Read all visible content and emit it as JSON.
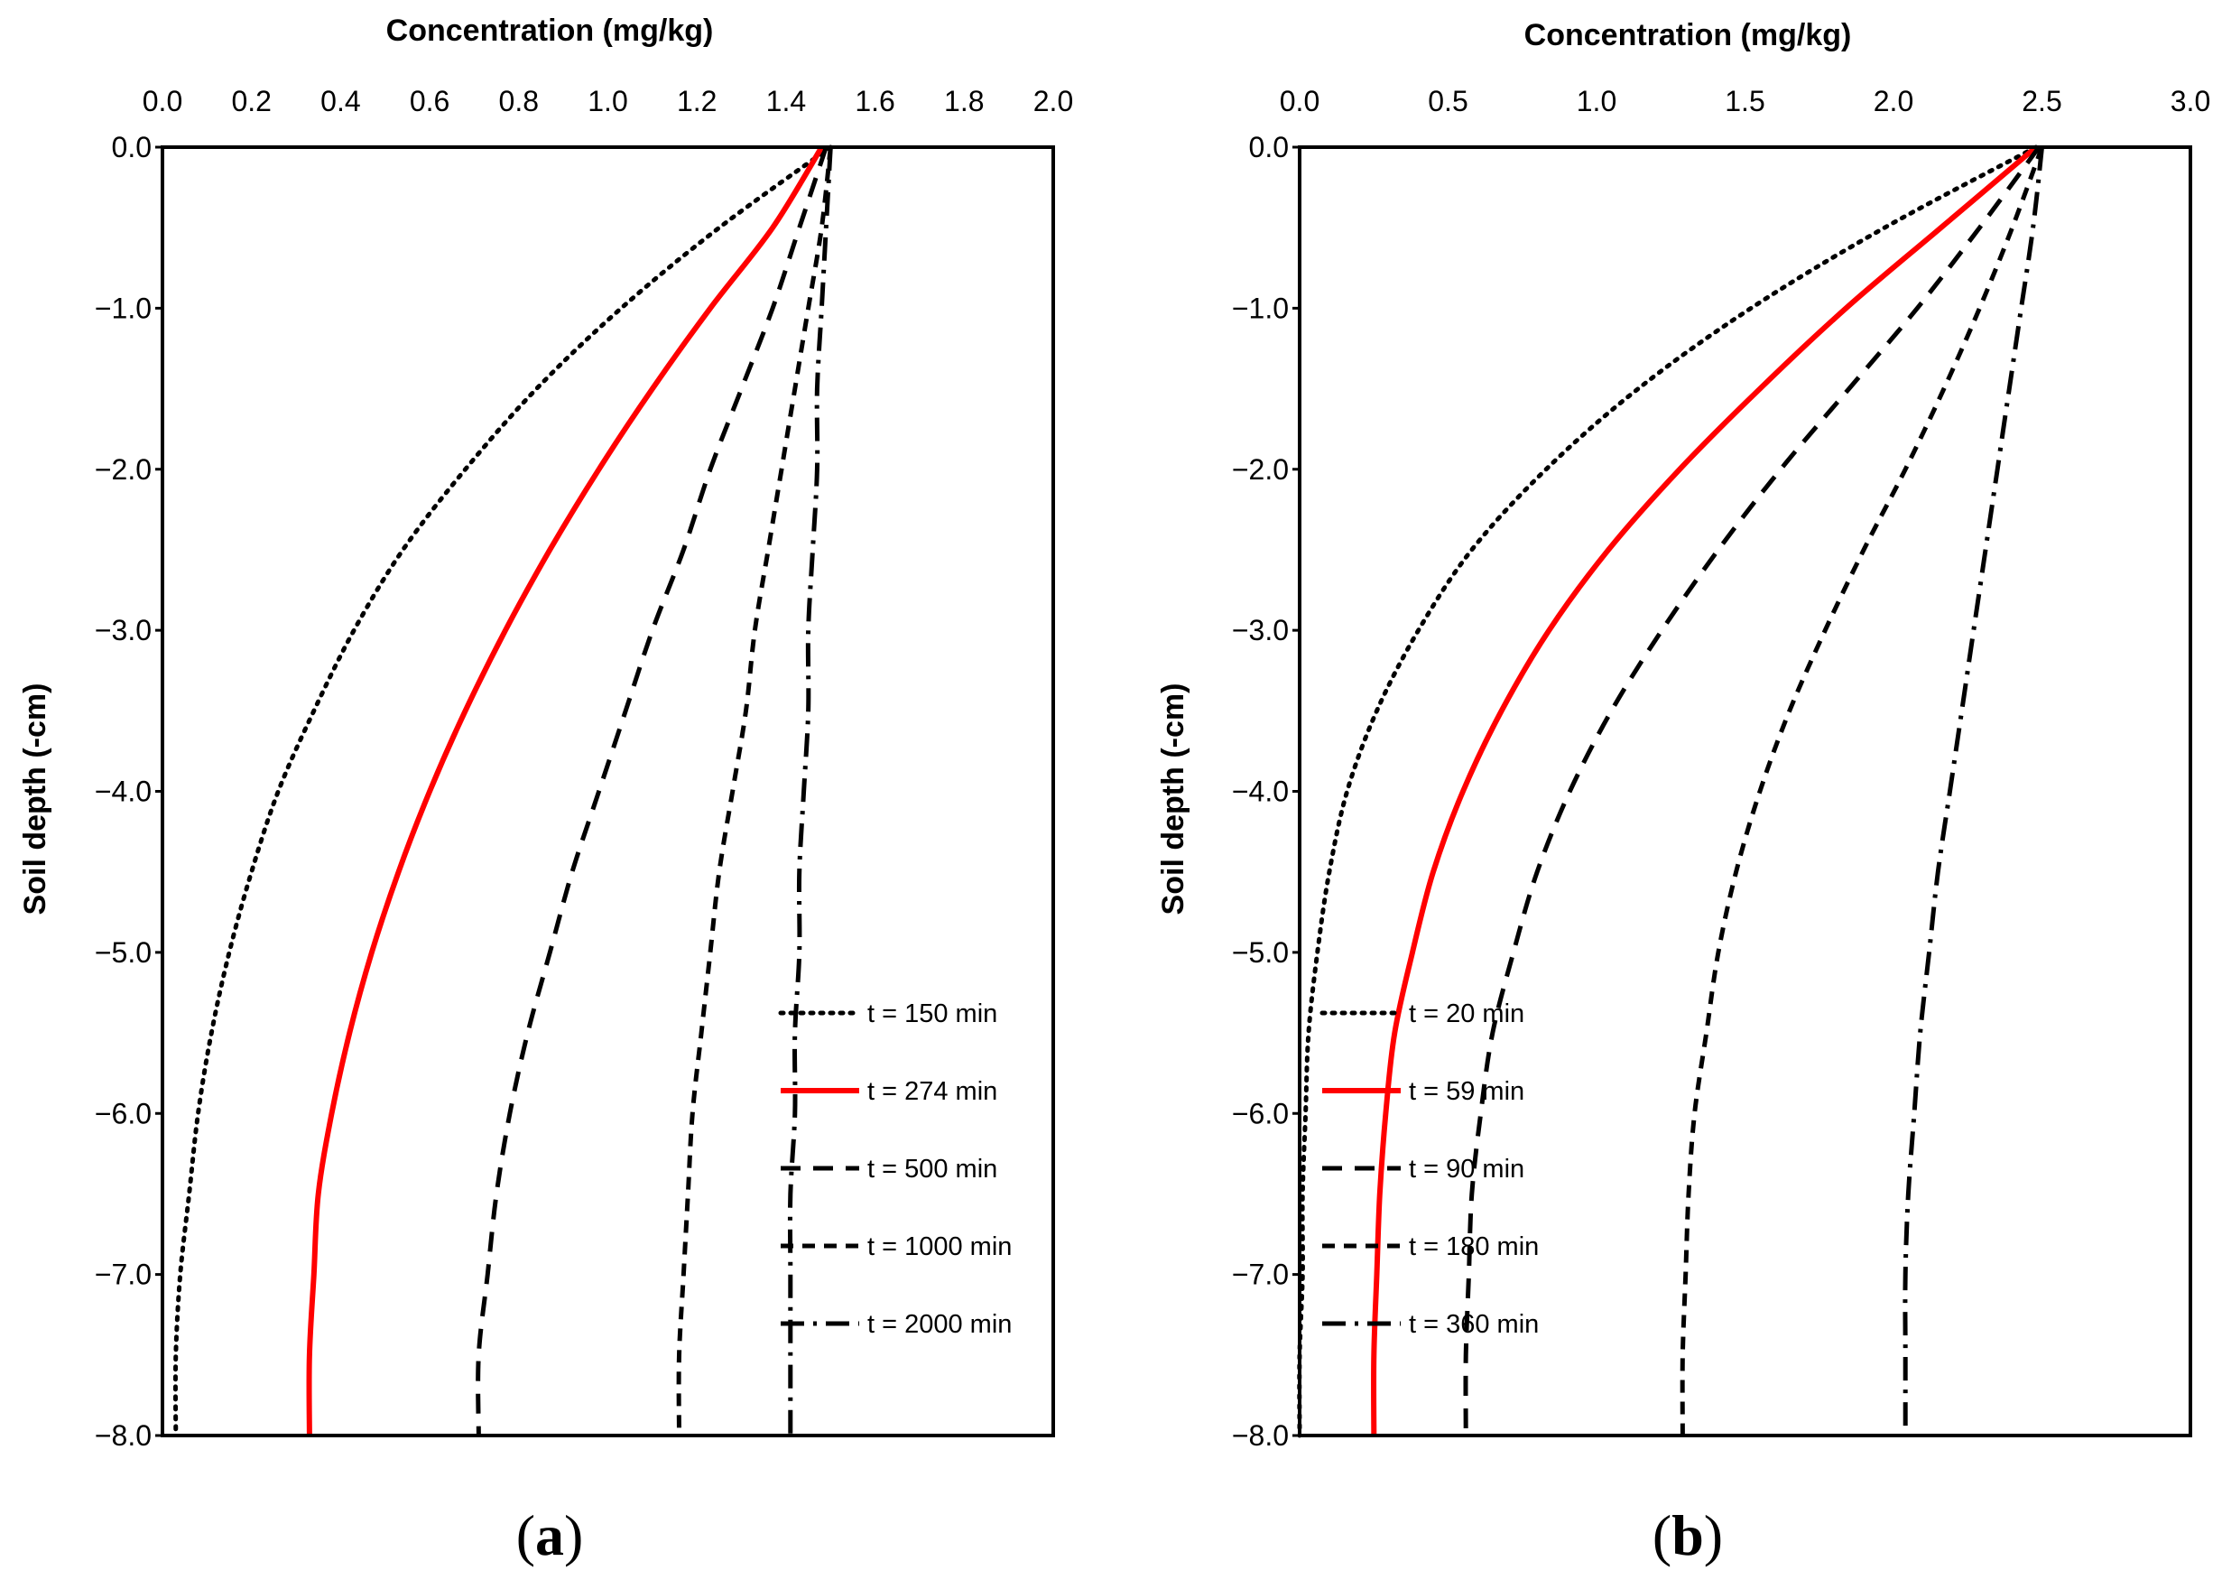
{
  "chart_data": [
    {
      "type": "line",
      "panel_label": {
        "open": "(",
        "letter": "a",
        "close": ")"
      },
      "xlabel": "Concentration (mg/kg)",
      "ylabel": "Soil depth (-cm)",
      "xlim": [
        0,
        2
      ],
      "ylim": [
        -8,
        0
      ],
      "x_ticks": [
        "0.0",
        "0.2",
        "0.4",
        "0.6",
        "0.8",
        "1.0",
        "1.2",
        "1.4",
        "1.6",
        "1.8",
        "2.0"
      ],
      "x_tick_values": [
        0,
        0.2,
        0.4,
        0.6,
        0.8,
        1.0,
        1.2,
        1.4,
        1.6,
        1.8,
        2.0
      ],
      "y_ticks": [
        "0.0",
        "−1.0",
        "−2.0",
        "−3.0",
        "−4.0",
        "−5.0",
        "−6.0",
        "−7.0",
        "−8.0"
      ],
      "y_tick_values": [
        0,
        -1,
        -2,
        -3,
        -4,
        -5,
        -6,
        -7,
        -8
      ],
      "legend_position": "bottom-right",
      "series": [
        {
          "name": "t = 150 min",
          "style": "dotted",
          "color": "#000000",
          "depth": [
            0,
            -0.5,
            -1,
            -1.5,
            -2,
            -2.5,
            -3,
            -3.5,
            -4,
            -4.5,
            -5,
            -5.5,
            -6,
            -6.5,
            -7,
            -7.5,
            -8
          ],
          "concentration": [
            1.5,
            1.25,
            1.03,
            0.84,
            0.68,
            0.54,
            0.43,
            0.34,
            0.26,
            0.2,
            0.15,
            0.11,
            0.08,
            0.06,
            0.04,
            0.03,
            0.03
          ]
        },
        {
          "name": "t = 274 min",
          "style": "solid",
          "color": "#ff0000",
          "depth": [
            0,
            -0.5,
            -1,
            -1.5,
            -2,
            -2.5,
            -3,
            -3.5,
            -4,
            -4.5,
            -5,
            -5.5,
            -6,
            -6.5,
            -7,
            -7.5,
            -8
          ],
          "concentration": [
            1.48,
            1.37,
            1.23,
            1.1,
            0.98,
            0.87,
            0.77,
            0.68,
            0.6,
            0.53,
            0.47,
            0.42,
            0.38,
            0.35,
            0.34,
            0.33,
            0.33
          ]
        },
        {
          "name": "t = 500 min",
          "style": "dashed",
          "color": "#000000",
          "depth": [
            0,
            -0.5,
            -1,
            -1.5,
            -2,
            -2.5,
            -3,
            -3.5,
            -4,
            -4.5,
            -5,
            -5.5,
            -6,
            -6.5,
            -7,
            -7.5,
            -8
          ],
          "concentration": [
            1.49,
            1.43,
            1.37,
            1.3,
            1.23,
            1.17,
            1.1,
            1.04,
            0.98,
            0.92,
            0.87,
            0.82,
            0.78,
            0.75,
            0.73,
            0.71,
            0.71
          ]
        },
        {
          "name": "t = 1000 min",
          "style": "short-dashed",
          "color": "#000000",
          "depth": [
            0,
            -0.5,
            -1,
            -1.5,
            -2,
            -2.5,
            -3,
            -3.5,
            -4,
            -4.5,
            -5,
            -5.5,
            -6,
            -6.5,
            -7,
            -7.5,
            -8
          ],
          "concentration": [
            1.5,
            1.48,
            1.45,
            1.42,
            1.39,
            1.36,
            1.33,
            1.31,
            1.28,
            1.25,
            1.23,
            1.21,
            1.19,
            1.18,
            1.17,
            1.16,
            1.16
          ]
        },
        {
          "name": "t = 2000 min",
          "style": "dash-dot",
          "color": "#000000",
          "depth": [
            0,
            -0.5,
            -1,
            -1.5,
            -2,
            -2.5,
            -3,
            -3.5,
            -4,
            -4.5,
            -5,
            -5.5,
            -6,
            -6.5,
            -7,
            -7.5,
            -8
          ],
          "concentration": [
            1.5,
            1.49,
            1.48,
            1.47,
            1.47,
            1.46,
            1.45,
            1.45,
            1.44,
            1.43,
            1.43,
            1.42,
            1.42,
            1.41,
            1.41,
            1.41,
            1.41
          ]
        }
      ]
    },
    {
      "type": "line",
      "panel_label": {
        "open": "(",
        "letter": "b",
        "close": ")"
      },
      "xlabel": "Concentration (mg/kg)",
      "ylabel": "Soil depth (-cm)",
      "xlim": [
        0,
        3
      ],
      "ylim": [
        -8,
        0
      ],
      "x_ticks": [
        "0.0",
        "0.5",
        "1.0",
        "1.5",
        "2.0",
        "2.5",
        "3.0"
      ],
      "x_tick_values": [
        0,
        0.5,
        1.0,
        1.5,
        2.0,
        2.5,
        3.0
      ],
      "y_ticks": [
        "0.0",
        "−1.0",
        "−2.0",
        "−3.0",
        "−4.0",
        "−5.0",
        "−6.0",
        "−7.0",
        "−8.0"
      ],
      "y_tick_values": [
        0,
        -1,
        -2,
        -3,
        -4,
        -5,
        -6,
        -7,
        -8
      ],
      "legend_position": "bottom-right",
      "series": [
        {
          "name": "t = 20 min",
          "style": "dotted",
          "color": "#000000",
          "depth": [
            0,
            -0.5,
            -1,
            -1.5,
            -2,
            -2.5,
            -3,
            -3.5,
            -4,
            -4.5,
            -5,
            -5.5,
            -6,
            -6.5,
            -7,
            -7.5,
            -8
          ],
          "concentration": [
            2.48,
            1.97,
            1.52,
            1.14,
            0.83,
            0.58,
            0.4,
            0.26,
            0.16,
            0.1,
            0.06,
            0.03,
            0.02,
            0.01,
            0.01,
            0.0,
            0.0
          ]
        },
        {
          "name": "t = 59 min",
          "style": "solid",
          "color": "#ff0000",
          "depth": [
            0,
            -0.5,
            -1,
            -1.5,
            -2,
            -2.5,
            -3,
            -3.5,
            -4,
            -4.5,
            -5,
            -5.5,
            -6,
            -6.5,
            -7,
            -7.5,
            -8
          ],
          "concentration": [
            2.48,
            2.16,
            1.84,
            1.55,
            1.28,
            1.04,
            0.84,
            0.68,
            0.55,
            0.45,
            0.38,
            0.32,
            0.29,
            0.27,
            0.26,
            0.25,
            0.25
          ]
        },
        {
          "name": "t = 90 min",
          "style": "dashed",
          "color": "#000000",
          "depth": [
            0,
            -0.5,
            -1,
            -1.5,
            -2,
            -2.5,
            -3,
            -3.5,
            -4,
            -4.5,
            -5,
            -5.5,
            -6,
            -6.5,
            -7,
            -7.5,
            -8
          ],
          "concentration": [
            2.49,
            2.29,
            2.08,
            1.85,
            1.62,
            1.41,
            1.22,
            1.05,
            0.91,
            0.8,
            0.72,
            0.65,
            0.61,
            0.58,
            0.57,
            0.56,
            0.56
          ]
        },
        {
          "name": "t = 180 min",
          "style": "short-dashed",
          "color": "#000000",
          "depth": [
            0,
            -0.5,
            -1,
            -1.5,
            -2,
            -2.5,
            -3,
            -3.5,
            -4,
            -4.5,
            -5,
            -5.5,
            -6,
            -6.5,
            -7,
            -7.5,
            -8
          ],
          "concentration": [
            2.5,
            2.4,
            2.29,
            2.17,
            2.04,
            1.9,
            1.77,
            1.65,
            1.55,
            1.47,
            1.41,
            1.37,
            1.33,
            1.31,
            1.3,
            1.29,
            1.29
          ]
        },
        {
          "name": "t = 360 min",
          "style": "dash-dot",
          "color": "#000000",
          "depth": [
            0,
            -0.5,
            -1,
            -1.5,
            -2,
            -2.5,
            -3,
            -3.5,
            -4,
            -4.5,
            -5,
            -5.5,
            -6,
            -6.5,
            -7,
            -7.5,
            -8
          ],
          "concentration": [
            2.5,
            2.47,
            2.43,
            2.39,
            2.35,
            2.31,
            2.27,
            2.23,
            2.19,
            2.15,
            2.12,
            2.09,
            2.07,
            2.05,
            2.04,
            2.04,
            2.04
          ]
        }
      ]
    }
  ]
}
